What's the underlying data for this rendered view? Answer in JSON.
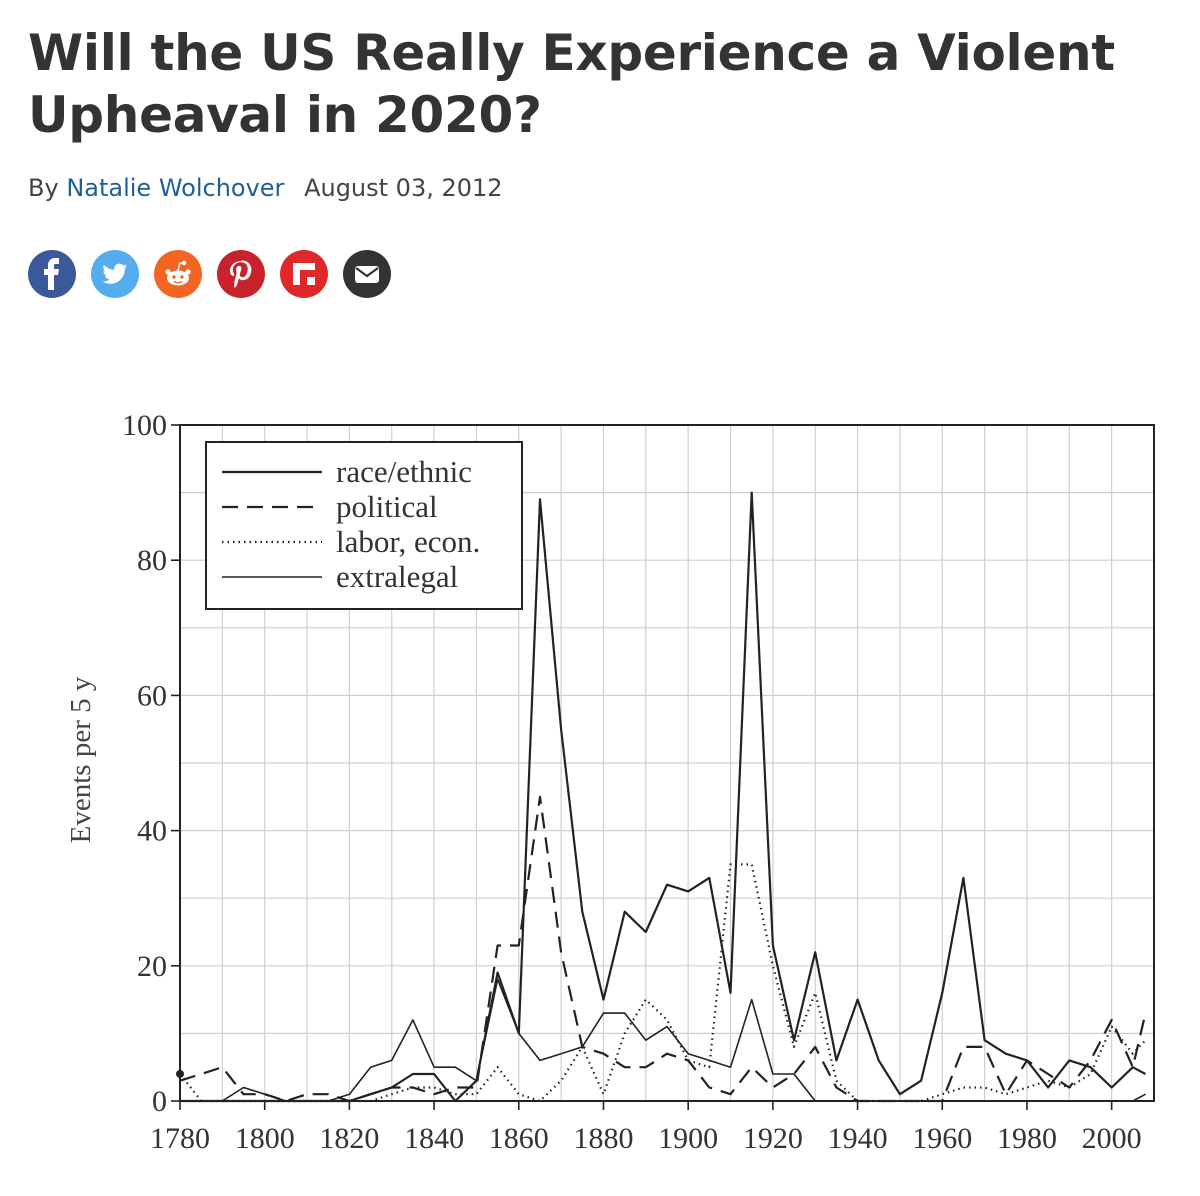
{
  "article": {
    "title": "Will the US Really Experience a Violent Upheaval in 2020?",
    "by_label": "By",
    "author": "Natalie Wolchover",
    "date": "August 03, 2012"
  },
  "share": [
    {
      "name": "facebook-share-button",
      "icon": "facebook-icon",
      "color": "#3b5998"
    },
    {
      "name": "twitter-share-button",
      "icon": "twitter-icon",
      "color": "#55acee"
    },
    {
      "name": "reddit-share-button",
      "icon": "reddit-icon",
      "color": "#f26522"
    },
    {
      "name": "pinterest-share-button",
      "icon": "pinterest-icon",
      "color": "#c8232c"
    },
    {
      "name": "flipboard-share-button",
      "icon": "flipboard-icon",
      "color": "#e12828"
    },
    {
      "name": "email-share-button",
      "icon": "email-icon",
      "color": "#333333"
    }
  ],
  "chart_data": {
    "type": "line",
    "title": "",
    "xlabel": "",
    "ylabel": "Events per 5 y",
    "xlim": [
      1780,
      2010
    ],
    "ylim": [
      0,
      100
    ],
    "xticks": [
      1780,
      1800,
      1820,
      1840,
      1860,
      1880,
      1900,
      1920,
      1940,
      1960,
      1980,
      2000
    ],
    "yticks": [
      0,
      20,
      40,
      60,
      80,
      100
    ],
    "grid": true,
    "legend_position": "top-left",
    "series": [
      {
        "name": "race/ethnic",
        "style": "solid",
        "x": [
          1780,
          1785,
          1790,
          1795,
          1800,
          1805,
          1810,
          1815,
          1820,
          1825,
          1830,
          1835,
          1840,
          1845,
          1850,
          1855,
          1860,
          1865,
          1870,
          1875,
          1880,
          1885,
          1890,
          1895,
          1900,
          1905,
          1910,
          1915,
          1920,
          1925,
          1930,
          1935,
          1940,
          1945,
          1950,
          1955,
          1960,
          1965,
          1970,
          1975,
          1980,
          1985,
          1990,
          1995,
          2000,
          2005,
          2008
        ],
        "y": [
          0,
          0,
          0,
          0,
          0,
          0,
          0,
          0,
          0,
          1,
          2,
          4,
          4,
          0,
          3,
          19,
          10,
          89,
          55,
          28,
          15,
          28,
          25,
          32,
          31,
          33,
          16,
          90,
          23,
          9,
          22,
          6,
          15,
          6,
          1,
          3,
          16,
          33,
          9,
          7,
          6,
          2,
          6,
          5,
          2,
          5,
          4
        ]
      },
      {
        "name": "political",
        "style": "dashed",
        "x": [
          1780,
          1785,
          1790,
          1795,
          1800,
          1805,
          1810,
          1815,
          1820,
          1825,
          1830,
          1835,
          1840,
          1845,
          1850,
          1855,
          1860,
          1865,
          1870,
          1875,
          1880,
          1885,
          1890,
          1895,
          1900,
          1905,
          1910,
          1915,
          1920,
          1925,
          1930,
          1935,
          1940,
          1945,
          1950,
          1955,
          1960,
          1965,
          1970,
          1975,
          1980,
          1985,
          1990,
          1995,
          2000,
          2005,
          2008
        ],
        "y": [
          3,
          4,
          5,
          1,
          1,
          0,
          1,
          1,
          0,
          1,
          2,
          2,
          1,
          2,
          2,
          23,
          23,
          45,
          22,
          8,
          7,
          5,
          5,
          7,
          6,
          2,
          1,
          5,
          2,
          4,
          8,
          2,
          0,
          0,
          0,
          0,
          0,
          8,
          8,
          1,
          6,
          4,
          2,
          6,
          12,
          5,
          13
        ]
      },
      {
        "name": "labor, econ.",
        "style": "dotted",
        "x": [
          1780,
          1785,
          1790,
          1795,
          1800,
          1805,
          1810,
          1815,
          1820,
          1825,
          1830,
          1835,
          1840,
          1845,
          1850,
          1855,
          1860,
          1865,
          1870,
          1875,
          1880,
          1885,
          1890,
          1895,
          1900,
          1905,
          1910,
          1915,
          1920,
          1925,
          1930,
          1935,
          1940,
          1945,
          1950,
          1955,
          1960,
          1965,
          1970,
          1975,
          1980,
          1985,
          1990,
          1995,
          2000,
          2005,
          2008
        ],
        "y": [
          4,
          0,
          0,
          0,
          0,
          0,
          0,
          0,
          0,
          0,
          1,
          2,
          2,
          1,
          1,
          5,
          1,
          0,
          3,
          8,
          1,
          10,
          15,
          12,
          6,
          5,
          35,
          35,
          20,
          8,
          16,
          3,
          0,
          0,
          0,
          0,
          1,
          2,
          2,
          1,
          2,
          3,
          2,
          4,
          11,
          7,
          9
        ]
      },
      {
        "name": "extralegal",
        "style": "solid-thin",
        "x": [
          1780,
          1785,
          1790,
          1795,
          1800,
          1805,
          1810,
          1815,
          1820,
          1825,
          1830,
          1835,
          1840,
          1845,
          1850,
          1855,
          1860,
          1865,
          1870,
          1875,
          1880,
          1885,
          1890,
          1895,
          1900,
          1905,
          1910,
          1915,
          1920,
          1925,
          1930,
          1935,
          1940,
          1945,
          1950,
          1955,
          1960,
          1965,
          1970,
          1975,
          1980,
          1985,
          1990,
          1995,
          2000,
          2005,
          2008
        ],
        "y": [
          0,
          0,
          0,
          2,
          1,
          0,
          0,
          0,
          1,
          5,
          6,
          12,
          5,
          5,
          3,
          18,
          10,
          6,
          7,
          8,
          13,
          13,
          9,
          11,
          7,
          6,
          5,
          15,
          4,
          4,
          0,
          0,
          0,
          0,
          0,
          0,
          0,
          0,
          0,
          0,
          0,
          0,
          0,
          0,
          0,
          0,
          1
        ]
      }
    ]
  }
}
